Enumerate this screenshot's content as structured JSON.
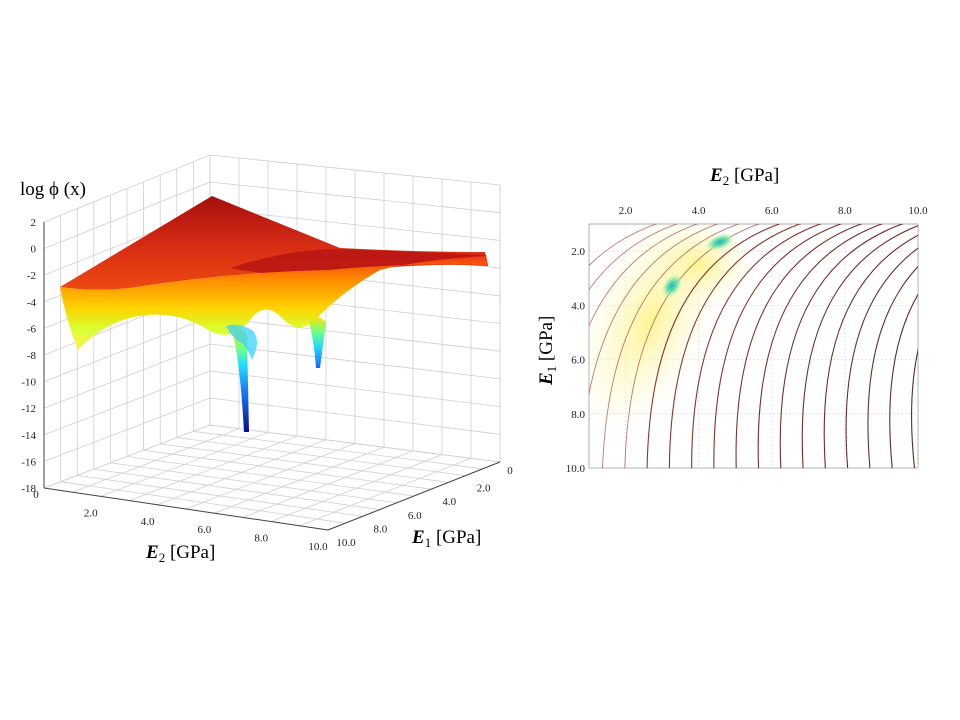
{
  "chart_data": [
    {
      "type": "surface",
      "zlabel": "log ϕ (x)",
      "xlabel_symbol": "E",
      "xlabel_sub": "2",
      "xlabel_unit": " [GPa]",
      "ylabel_symbol": "E",
      "ylabel_sub": "1",
      "ylabel_unit": " [GPa]",
      "z_ticks": [
        "2",
        "0",
        "-2",
        "-4",
        "-6",
        "-8",
        "-10",
        "-12",
        "-14",
        "-16",
        "-18"
      ],
      "x_ticks": [
        "0",
        "2.0",
        "4.0",
        "6.0",
        "8.0",
        "10.0"
      ],
      "y_ticks": [
        "0",
        "2.0",
        "4.0",
        "6.0",
        "8.0",
        "10.0"
      ],
      "xlim": [
        0,
        10
      ],
      "ylim": [
        0,
        10
      ],
      "zlim": [
        -18,
        2
      ],
      "grid": true,
      "colormap": "jet",
      "minima": [
        {
          "E2": 4.0,
          "E1": 3.2,
          "logphi": -14
        },
        {
          "E2": 7.0,
          "E1": 4.6,
          "logphi": -9
        }
      ]
    },
    {
      "type": "contour",
      "xlabel_symbol": "E",
      "xlabel_sub": "2",
      "xlabel_unit": " [GPa]",
      "ylabel_symbol": "E",
      "ylabel_sub": "1",
      "ylabel_unit": " [GPa]",
      "x_ticks": [
        "2.0",
        "4.0",
        "6.0",
        "8.0",
        "10.0"
      ],
      "y_ticks": [
        "2.0",
        "4.0",
        "6.0",
        "8.0",
        "10.0"
      ],
      "xlim": [
        1,
        10
      ],
      "ylim": [
        1,
        10
      ],
      "x_axis_position": "top",
      "y_axis_inverted": true,
      "grid": true,
      "minima": [
        {
          "E2": 4.4,
          "E1": 1.8
        },
        {
          "E2": 3.0,
          "E1": 3.9
        }
      ]
    }
  ]
}
